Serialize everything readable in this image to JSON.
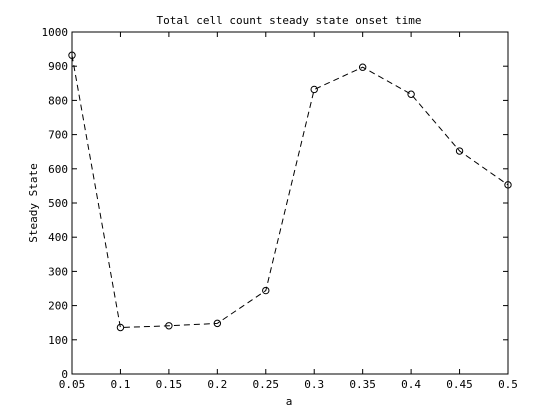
{
  "chart_data": {
    "type": "line",
    "title": "Total cell count steady state onset time",
    "xlabel": "a",
    "ylabel": "Steady State",
    "x": [
      0.05,
      0.1,
      0.15,
      0.2,
      0.25,
      0.3,
      0.35,
      0.4,
      0.45,
      0.5
    ],
    "series": [
      {
        "values": [
          932,
          136,
          141,
          148,
          244,
          832,
          897,
          818,
          652,
          553
        ],
        "line_style": "dashed",
        "marker": "circle",
        "color": "#000000"
      }
    ],
    "xlim": [
      0.05,
      0.5
    ],
    "ylim": [
      0,
      1000
    ],
    "xticks": [
      0.05,
      0.1,
      0.15,
      0.2,
      0.25,
      0.3,
      0.35,
      0.4,
      0.45,
      0.5
    ],
    "xtick_labels": [
      "0.05",
      "0.1",
      "0.15",
      "0.2",
      "0.25",
      "0.3",
      "0.35",
      "0.4",
      "0.45",
      "0.5"
    ],
    "yticks": [
      0,
      100,
      200,
      300,
      400,
      500,
      600,
      700,
      800,
      900,
      1000
    ],
    "ytick_labels": [
      "0",
      "100",
      "200",
      "300",
      "400",
      "500",
      "600",
      "700",
      "800",
      "900",
      "1000"
    ],
    "grid": false,
    "legend": "none"
  }
}
